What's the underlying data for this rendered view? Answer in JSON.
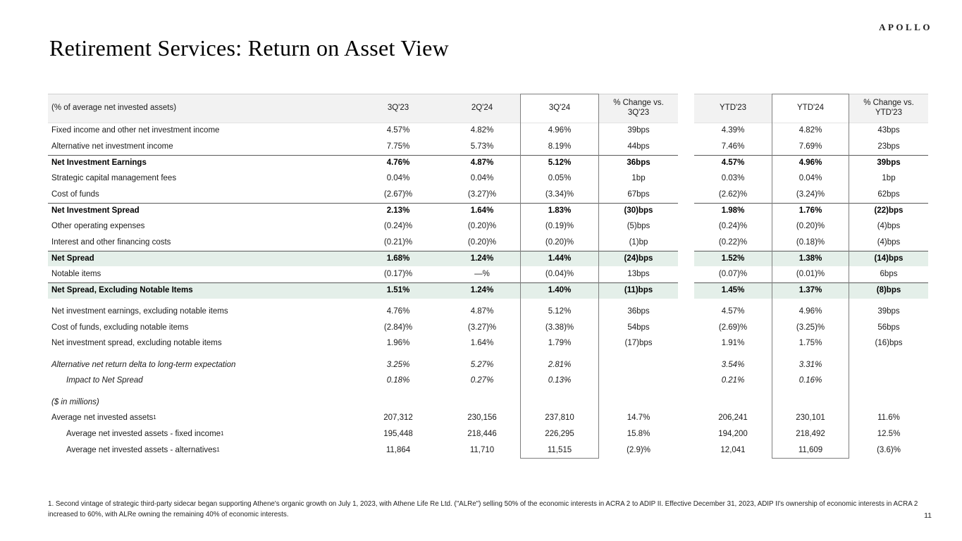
{
  "page": {
    "logo": "APOLLO",
    "title": "Retirement Services: Return on Asset View",
    "page_number": "11",
    "footnote": "1. Second vintage of strategic third-party sidecar began supporting Athene's organic growth on July 1, 2023, with Athene Life Re Ltd. (\"ALRe\") selling 50% of the economic interests in ACRA 2 to ADIP II. Effective December 31, 2023, ADIP II's ownership of economic interests in ACRA 2 increased to 60%, with ALRe owning the remaining 40% of economic interests."
  },
  "colors": {
    "header_row_bg": "#f2f2f2",
    "highlight_row_bg": "#e4efe9",
    "rule": "#595959",
    "box_border": "#7f7f7f",
    "text": "#1a1a1a"
  },
  "table": {
    "header": {
      "label": "(% of average net invested assets)",
      "cols": [
        "3Q'23",
        "2Q'24",
        "3Q'24",
        "% Change vs.\n3Q'23",
        "YTD'23",
        "YTD'24",
        "% Change vs.\nYTD'23"
      ]
    },
    "rows": [
      {
        "label": "Fixed income and other net investment income",
        "values": [
          "4.57%",
          "4.82%",
          "4.96%",
          "39bps",
          "4.39%",
          "4.82%",
          "43bps"
        ]
      },
      {
        "label": "Alternative net investment income",
        "values": [
          "7.75%",
          "5.73%",
          "8.19%",
          "44bps",
          "7.46%",
          "7.69%",
          "23bps"
        ]
      },
      {
        "label": "Net Investment Earnings",
        "style": "bold",
        "rule_top": true,
        "values": [
          "4.76%",
          "4.87%",
          "5.12%",
          "36bps",
          "4.57%",
          "4.96%",
          "39bps"
        ]
      },
      {
        "label": "Strategic capital management fees",
        "values": [
          "0.04%",
          "0.04%",
          "0.05%",
          "1bp",
          "0.03%",
          "0.04%",
          "1bp"
        ]
      },
      {
        "label": "Cost of funds",
        "values": [
          "(2.67)%",
          "(3.27)%",
          "(3.34)%",
          "67bps",
          "(2.62)%",
          "(3.24)%",
          "62bps"
        ]
      },
      {
        "label": "Net Investment Spread",
        "style": "bold",
        "rule_top": true,
        "values": [
          "2.13%",
          "1.64%",
          "1.83%",
          "(30)bps",
          "1.98%",
          "1.76%",
          "(22)bps"
        ]
      },
      {
        "label": "Other operating expenses",
        "values": [
          "(0.24)%",
          "(0.20)%",
          "(0.19)%",
          "(5)bps",
          "(0.24)%",
          "(0.20)%",
          "(4)bps"
        ]
      },
      {
        "label": "Interest and other financing costs",
        "values": [
          "(0.21)%",
          "(0.20)%",
          "(0.20)%",
          "(1)bp",
          "(0.22)%",
          "(0.18)%",
          "(4)bps"
        ]
      },
      {
        "label": "Net Spread",
        "style": "bold",
        "highlight": true,
        "rule_top": true,
        "values": [
          "1.68%",
          "1.24%",
          "1.44%",
          "(24)bps",
          "1.52%",
          "1.38%",
          "(14)bps"
        ]
      },
      {
        "label": "Notable items",
        "values": [
          "(0.17)%",
          "—%",
          "(0.04)%",
          "13bps",
          "(0.07)%",
          "(0.01)%",
          "6bps"
        ]
      },
      {
        "label": "Net Spread, Excluding Notable Items",
        "style": "bold",
        "highlight": true,
        "rule_top": true,
        "values": [
          "1.51%",
          "1.24%",
          "1.40%",
          "(11)bps",
          "1.45%",
          "1.37%",
          "(8)bps"
        ]
      },
      {
        "spacer": true
      },
      {
        "label": "Net investment earnings, excluding notable items",
        "values": [
          "4.76%",
          "4.87%",
          "5.12%",
          "36bps",
          "4.57%",
          "4.96%",
          "39bps"
        ]
      },
      {
        "label": "Cost of funds, excluding notable items",
        "values": [
          "(2.84)%",
          "(3.27)%",
          "(3.38)%",
          "54bps",
          "(2.69)%",
          "(3.25)%",
          "56bps"
        ]
      },
      {
        "label": "Net investment spread, excluding notable items",
        "values": [
          "1.96%",
          "1.64%",
          "1.79%",
          "(17)bps",
          "1.91%",
          "1.75%",
          "(16)bps"
        ]
      },
      {
        "spacer": true
      },
      {
        "label": "Alternative net return delta to long-term expectation",
        "style": "italic",
        "values": [
          "3.25%",
          "5.27%",
          "2.81%",
          "",
          "3.54%",
          "3.31%",
          ""
        ]
      },
      {
        "label": "Impact to Net Spread",
        "style": "italic",
        "indent": 1,
        "values": [
          "0.18%",
          "0.27%",
          "0.13%",
          "",
          "0.21%",
          "0.16%",
          ""
        ]
      },
      {
        "spacer": true
      },
      {
        "label": "($ in millions)",
        "style": "italic",
        "values": [
          "",
          "",
          "",
          "",
          "",
          "",
          ""
        ]
      },
      {
        "label": "Average net invested assets",
        "sup": "1",
        "values": [
          "207,312",
          "230,156",
          "237,810",
          "14.7%",
          "206,241",
          "230,101",
          "11.6%"
        ]
      },
      {
        "label": "Average net invested assets - fixed income",
        "sup": "1",
        "indent": 1,
        "values": [
          "195,448",
          "218,446",
          "226,295",
          "15.8%",
          "194,200",
          "218,492",
          "12.5%"
        ]
      },
      {
        "label": "Average net invested assets - alternatives",
        "sup": "1",
        "indent": 1,
        "values": [
          "11,864",
          "11,710",
          "11,515",
          "(2.9)%",
          "12,041",
          "11,609",
          "(3.6)%"
        ]
      }
    ]
  }
}
